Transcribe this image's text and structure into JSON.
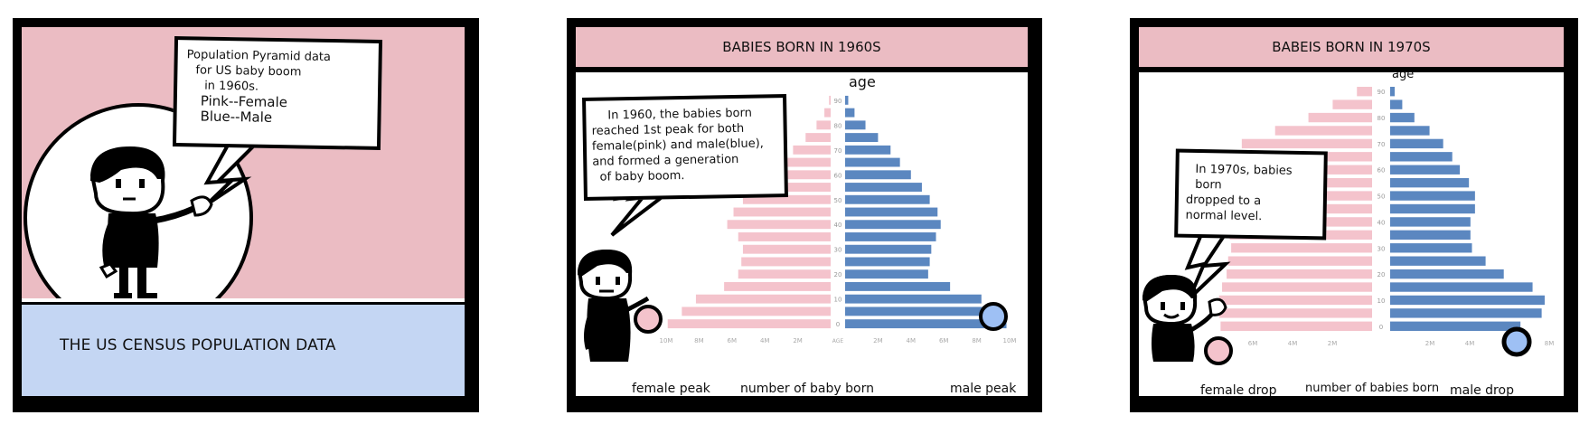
{
  "panel1": {
    "speech_lines": [
      "Population Pyramid data",
      "for US baby boom",
      "in 1960s.",
      "Pink--Female",
      "Blue--Male"
    ],
    "footer": "THE US CENSUS POPULATION DATA",
    "colors": {
      "pink": "#ebbcc3",
      "blue": "#c4d6f3"
    }
  },
  "panel2": {
    "title": "BABIES BORN IN 1960S",
    "speech_lines": [
      "In 1960, the babies born",
      "reached 1st peak for both",
      "female(pink) and male(blue),",
      "and formed a generation",
      "of baby boom."
    ],
    "label_left": "female peak",
    "label_center": "number of baby born",
    "label_right": "male peak"
  },
  "panel3": {
    "title": "BABEIS BORN IN 1970S",
    "speech_lines": [
      "In 1970s, babies born",
      "dropped to a",
      "normal level."
    ],
    "label_left": "female drop",
    "label_center": "number of babies born",
    "label_right": "male drop"
  },
  "chart_data": [
    {
      "type": "bar",
      "orientation": "horizontal-pyramid",
      "ylabel": "age",
      "categories": [
        "0",
        "5",
        "10",
        "15",
        "20",
        "25",
        "30",
        "35",
        "40",
        "45",
        "50",
        "55",
        "60",
        "65",
        "70",
        "75",
        "80",
        "85",
        "90"
      ],
      "y_ticks": [
        "0",
        "10",
        "20",
        "30",
        "40",
        "50",
        "60",
        "70",
        "80",
        "90"
      ],
      "x_ticks_left": [
        "10M",
        "8M",
        "6M",
        "4M",
        "2M"
      ],
      "x_ticks_right": [
        "2M",
        "4M",
        "6M",
        "8M",
        "10M"
      ],
      "x_center_label": "AGE",
      "series": [
        {
          "values": [
            10.4,
            9.5,
            8.6,
            6.8,
            5.9,
            5.7,
            5.6,
            5.9,
            6.6,
            6.2,
            5.6,
            4.9,
            4.3,
            3.2,
            2.4,
            1.6,
            0.9,
            0.4,
            0.1
          ]
        },
        {
          "values": [
            10.3,
            9.4,
            8.7,
            6.7,
            5.3,
            5.4,
            5.5,
            5.8,
            6.1,
            5.9,
            5.4,
            4.9,
            4.2,
            3.5,
            2.9,
            2.1,
            1.3,
            0.6,
            0.2
          ]
        }
      ],
      "colors": {
        "female": "#f4c3cc",
        "male": "#5b87c0"
      },
      "xlim": [
        0,
        10.5
      ]
    },
    {
      "type": "bar",
      "orientation": "horizontal-pyramid",
      "ylabel": "age",
      "categories": [
        "0",
        "5",
        "10",
        "15",
        "20",
        "25",
        "30",
        "35",
        "40",
        "45",
        "50",
        "55",
        "60",
        "65",
        "70",
        "75",
        "80",
        "85",
        "90"
      ],
      "y_ticks": [
        "0",
        "10",
        "20",
        "30",
        "40",
        "50",
        "60",
        "70",
        "80",
        "90"
      ],
      "x_ticks_left": [
        "8M",
        "6M",
        "4M",
        "2M"
      ],
      "x_ticks_right": [
        "2M",
        "4M",
        "6M",
        "8M"
      ],
      "series": [
        {
          "values": [
            10.0,
            10.1,
            10.1,
            9.9,
            9.6,
            9.5,
            9.3,
            9.4,
            9.4,
            9.5,
            9.5,
            9.3,
            9.4,
            9.0,
            8.6,
            6.4,
            4.2,
            2.6,
            1.0
          ]
        },
        {
          "values": [
            8.6,
            10.0,
            10.2,
            9.4,
            7.5,
            6.3,
            5.4,
            5.3,
            5.3,
            5.6,
            5.6,
            5.2,
            4.6,
            4.1,
            3.5,
            2.6,
            1.6,
            0.8,
            0.3
          ]
        }
      ],
      "colors": {
        "female": "#f4c3cc",
        "male": "#5b87c0"
      },
      "xlim": [
        0,
        10.5
      ]
    }
  ]
}
